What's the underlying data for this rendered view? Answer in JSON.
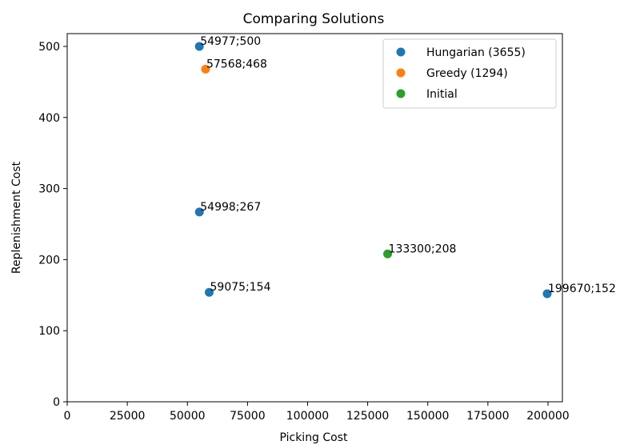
{
  "chart_data": {
    "type": "scatter",
    "title": "Comparing Solutions",
    "xlabel": "Picking Cost",
    "ylabel": "Replenishment Cost",
    "xlim": [
      0,
      206000
    ],
    "ylim": [
      0,
      518
    ],
    "xticks": [
      0,
      25000,
      50000,
      75000,
      100000,
      125000,
      150000,
      175000,
      200000
    ],
    "yticks": [
      0,
      100,
      200,
      300,
      400,
      500
    ],
    "legend_position": "top-right",
    "series": [
      {
        "name": "Hungarian (3655)",
        "color": "#1f77b4",
        "points": [
          {
            "x": 54977,
            "y": 500,
            "label": "54977;500"
          },
          {
            "x": 54998,
            "y": 267,
            "label": "54998;267"
          },
          {
            "x": 59075,
            "y": 154,
            "label": "59075;154"
          },
          {
            "x": 199670,
            "y": 152,
            "label": "199670;152"
          }
        ]
      },
      {
        "name": "Greedy (1294)",
        "color": "#ff7f0e",
        "points": [
          {
            "x": 57568,
            "y": 468,
            "label": "57568;468"
          }
        ]
      },
      {
        "name": "Initial",
        "color": "#2ca02c",
        "points": [
          {
            "x": 133300,
            "y": 208,
            "label": "133300;208"
          }
        ]
      }
    ]
  }
}
